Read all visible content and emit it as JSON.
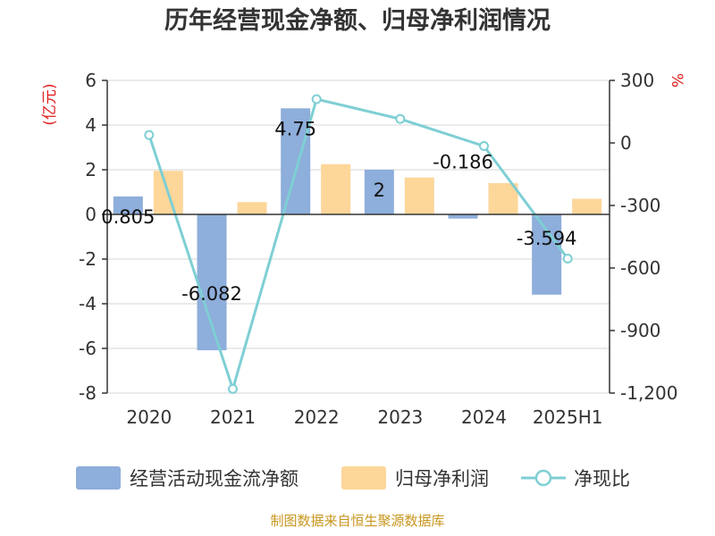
{
  "chart_data": {
    "type": "bar",
    "title": "历年经营现金净额、归母净利润情况",
    "categories": [
      "2020",
      "2021",
      "2022",
      "2023",
      "2024",
      "2025H1"
    ],
    "left_axis": {
      "unit": "(亿元)",
      "ylim": [
        -8,
        6
      ],
      "ticks": [
        "6",
        "4",
        "2",
        "0",
        "-2",
        "-4",
        "-6",
        "-8"
      ],
      "tick_values": [
        6,
        4,
        2,
        0,
        -2,
        -4,
        -6,
        -8
      ]
    },
    "right_axis": {
      "unit": "%",
      "ylim": [
        -1200,
        300
      ],
      "ticks": [
        "300",
        "0",
        "-300",
        "-600",
        "-900",
        "-1,200"
      ],
      "tick_values": [
        300,
        0,
        -300,
        -600,
        -900,
        -1200
      ]
    },
    "series": [
      {
        "name": "经营活动现金流净额",
        "type": "bar",
        "axis": "left",
        "color": "#8eaedb",
        "values": [
          0.805,
          -6.082,
          4.75,
          2,
          -0.186,
          -3.594
        ],
        "labels": [
          "0.805",
          "-6.082",
          "4.75",
          "2",
          "-0.186",
          "-3.594"
        ]
      },
      {
        "name": "归母净利润",
        "type": "bar",
        "axis": "left",
        "color": "#fdd699",
        "values": [
          1.95,
          0.55,
          2.25,
          1.65,
          1.4,
          0.7
        ]
      },
      {
        "name": "净现比",
        "type": "line",
        "axis": "right",
        "color": "#7ecfd4",
        "values": [
          38,
          -1180,
          210,
          115,
          -15,
          -555
        ]
      }
    ],
    "grid": true,
    "legend_position": "bottom"
  },
  "source": "制图数据来自恒生聚源数据库"
}
